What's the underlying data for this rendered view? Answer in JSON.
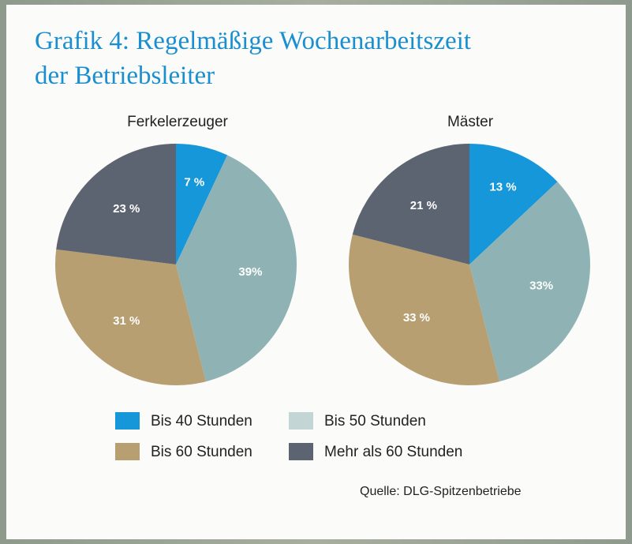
{
  "title_line1": "Grafik 4: Regelmäßige Wochenarbeitszeit",
  "title_line2": "der Betriebsleiter",
  "source": "Quelle: DLG-Spitzenbetriebe",
  "chart_data": [
    {
      "type": "pie",
      "title": "Ferkelerzeuger",
      "categories": [
        "Bis 40 Stunden",
        "Bis 50 Stunden",
        "Bis 60 Stunden",
        "Mehr als 60 Stunden"
      ],
      "values": [
        7,
        39,
        31,
        23
      ],
      "value_labels": [
        "7 %",
        "39%",
        "31 %",
        "23 %"
      ],
      "colors": [
        "#1697d9",
        "#8fb3b4",
        "#b79f72",
        "#5d6471"
      ],
      "start": "12 o'clock, clockwise"
    },
    {
      "type": "pie",
      "title": "Mäster",
      "categories": [
        "Bis 40 Stunden",
        "Bis 50 Stunden",
        "Bis 60 Stunden",
        "Mehr als 60 Stunden"
      ],
      "values": [
        13,
        33,
        33,
        21
      ],
      "value_labels": [
        "13 %",
        "33%",
        "33 %",
        "21 %"
      ],
      "colors": [
        "#1697d9",
        "#8fb3b4",
        "#b79f72",
        "#5d6471"
      ],
      "start": "12 o'clock, clockwise"
    }
  ],
  "legend": [
    {
      "label": "Bis 40 Stunden",
      "color": "#1697d9"
    },
    {
      "label": "Bis 50 Stunden",
      "color": "#c4d5d6"
    },
    {
      "label": "Bis 60 Stunden",
      "color": "#b79f72"
    },
    {
      "label": "Mehr als 60 Stunden",
      "color": "#5d6471"
    }
  ]
}
